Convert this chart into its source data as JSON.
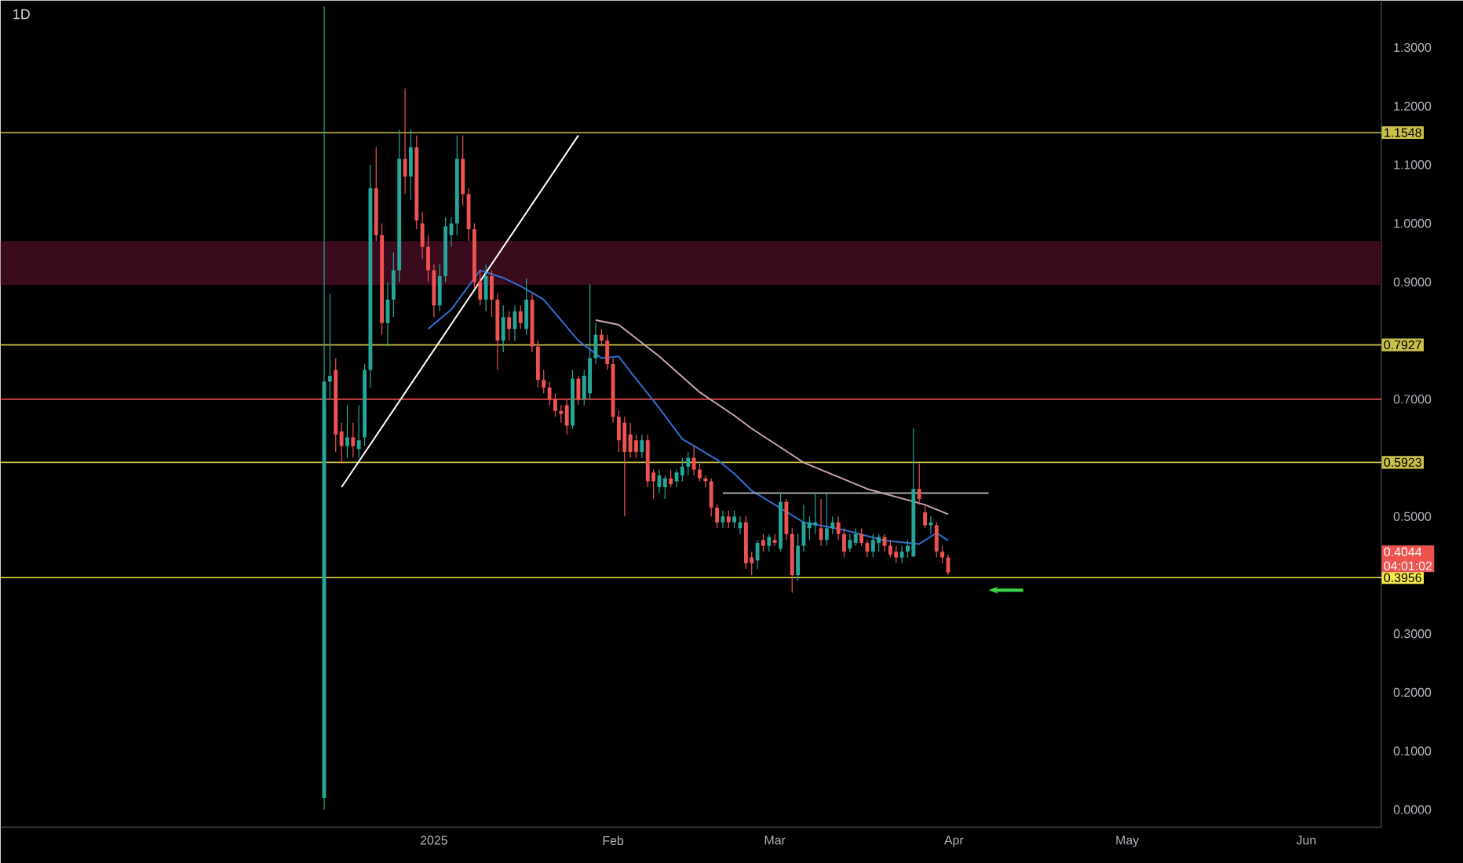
{
  "chart_data": {
    "type": "candlestick",
    "title": "1D",
    "x": [
      "2024-12-13",
      "2024-12-14",
      "2024-12-15",
      "2024-12-16",
      "2024-12-17",
      "2024-12-18",
      "2024-12-19",
      "2024-12-20",
      "2024-12-21",
      "2024-12-22",
      "2024-12-23",
      "2024-12-24",
      "2024-12-25",
      "2024-12-26",
      "2024-12-27",
      "2024-12-28",
      "2024-12-29",
      "2024-12-30",
      "2024-12-31",
      "2025-01-01",
      "2025-01-02",
      "2025-01-03",
      "2025-01-04",
      "2025-01-05",
      "2025-01-06",
      "2025-01-07",
      "2025-01-08",
      "2025-01-09",
      "2025-01-10",
      "2025-01-11",
      "2025-01-12",
      "2025-01-13",
      "2025-01-14",
      "2025-01-15",
      "2025-01-16",
      "2025-01-17",
      "2025-01-18",
      "2025-01-19",
      "2025-01-20",
      "2025-01-21",
      "2025-01-22",
      "2025-01-23",
      "2025-01-24",
      "2025-01-25",
      "2025-01-26",
      "2025-01-27",
      "2025-01-28",
      "2025-01-29",
      "2025-01-30",
      "2025-01-31",
      "2025-02-01",
      "2025-02-02",
      "2025-02-03",
      "2025-02-04",
      "2025-02-05",
      "2025-02-06",
      "2025-02-07",
      "2025-02-08",
      "2025-02-09",
      "2025-02-10",
      "2025-02-11",
      "2025-02-12",
      "2025-02-13",
      "2025-02-14",
      "2025-02-15",
      "2025-02-16",
      "2025-02-17",
      "2025-02-18",
      "2025-02-19",
      "2025-02-20",
      "2025-02-21",
      "2025-02-22",
      "2025-02-23",
      "2025-02-24",
      "2025-02-25",
      "2025-02-26",
      "2025-02-27",
      "2025-02-28",
      "2025-03-01",
      "2025-03-02",
      "2025-03-03",
      "2025-03-04",
      "2025-03-05",
      "2025-03-06",
      "2025-03-07",
      "2025-03-08",
      "2025-03-09",
      "2025-03-10",
      "2025-03-11",
      "2025-03-12",
      "2025-03-13",
      "2025-03-14",
      "2025-03-15",
      "2025-03-16",
      "2025-03-17",
      "2025-03-18",
      "2025-03-19",
      "2025-03-20",
      "2025-03-21",
      "2025-03-22",
      "2025-03-23",
      "2025-03-24",
      "2025-03-25",
      "2025-03-26",
      "2025-03-27",
      "2025-03-28",
      "2025-03-29",
      "2025-03-30",
      "2025-03-31"
    ],
    "ohlc": [
      [
        0.02,
        1.37,
        0.0,
        0.73
      ],
      [
        0.73,
        0.88,
        0.7,
        0.74
      ],
      [
        0.75,
        0.77,
        0.61,
        0.64
      ],
      [
        0.645,
        0.66,
        0.59,
        0.62
      ],
      [
        0.62,
        0.69,
        0.6,
        0.635
      ],
      [
        0.635,
        0.66,
        0.6,
        0.62
      ],
      [
        0.615,
        0.69,
        0.6,
        0.63
      ],
      [
        0.635,
        0.76,
        0.62,
        0.75
      ],
      [
        0.75,
        1.1,
        0.72,
        1.06
      ],
      [
        1.06,
        1.13,
        0.97,
        0.98
      ],
      [
        0.98,
        1.0,
        0.81,
        0.83
      ],
      [
        0.83,
        0.9,
        0.79,
        0.87
      ],
      [
        0.87,
        0.95,
        0.84,
        0.92
      ],
      [
        0.92,
        1.16,
        0.9,
        1.11
      ],
      [
        1.11,
        1.23,
        1.05,
        1.08
      ],
      [
        1.08,
        1.16,
        1.04,
        1.13
      ],
      [
        1.13,
        1.15,
        0.99,
        1.005
      ],
      [
        1.0,
        1.02,
        0.94,
        0.96
      ],
      [
        0.96,
        0.98,
        0.9,
        0.92
      ],
      [
        0.92,
        0.93,
        0.84,
        0.86
      ],
      [
        0.86,
        0.93,
        0.85,
        0.91
      ],
      [
        0.91,
        1.01,
        0.9,
        0.995
      ],
      [
        0.98,
        1.01,
        0.96,
        1.0
      ],
      [
        1.0,
        1.15,
        0.98,
        1.11
      ],
      [
        1.11,
        1.15,
        1.03,
        1.05
      ],
      [
        1.05,
        1.06,
        0.97,
        0.99
      ],
      [
        0.99,
        1.0,
        0.89,
        0.9
      ],
      [
        0.9,
        0.92,
        0.86,
        0.87
      ],
      [
        0.87,
        0.93,
        0.85,
        0.91
      ],
      [
        0.91,
        0.92,
        0.84,
        0.87
      ],
      [
        0.87,
        0.88,
        0.75,
        0.8
      ],
      [
        0.8,
        0.86,
        0.78,
        0.84
      ],
      [
        0.84,
        0.85,
        0.8,
        0.82
      ],
      [
        0.82,
        0.86,
        0.8,
        0.85
      ],
      [
        0.85,
        0.86,
        0.82,
        0.83
      ],
      [
        0.82,
        0.906,
        0.81,
        0.87
      ],
      [
        0.87,
        0.88,
        0.78,
        0.79
      ],
      [
        0.79,
        0.8,
        0.72,
        0.733
      ],
      [
        0.733,
        0.75,
        0.71,
        0.72
      ],
      [
        0.72,
        0.73,
        0.69,
        0.7
      ],
      [
        0.7,
        0.71,
        0.67,
        0.68
      ],
      [
        0.68,
        0.69,
        0.66,
        0.675
      ],
      [
        0.69,
        0.7,
        0.64,
        0.655
      ],
      [
        0.655,
        0.75,
        0.65,
        0.735
      ],
      [
        0.735,
        0.74,
        0.69,
        0.7
      ],
      [
        0.7,
        0.75,
        0.69,
        0.74
      ],
      [
        0.71,
        0.896,
        0.7,
        0.77
      ],
      [
        0.77,
        0.83,
        0.76,
        0.81
      ],
      [
        0.81,
        0.82,
        0.79,
        0.8
      ],
      [
        0.8,
        0.81,
        0.75,
        0.76
      ],
      [
        0.76,
        0.77,
        0.66,
        0.67
      ],
      [
        0.67,
        0.68,
        0.61,
        0.63
      ],
      [
        0.66,
        0.67,
        0.5,
        0.61
      ],
      [
        0.64,
        0.66,
        0.6,
        0.61
      ],
      [
        0.63,
        0.64,
        0.6,
        0.61
      ],
      [
        0.61,
        0.64,
        0.6,
        0.63
      ],
      [
        0.63,
        0.64,
        0.55,
        0.56
      ],
      [
        0.575,
        0.58,
        0.53,
        0.56
      ],
      [
        0.55,
        0.58,
        0.54,
        0.57
      ],
      [
        0.55,
        0.57,
        0.53,
        0.565
      ],
      [
        0.565,
        0.58,
        0.55,
        0.555
      ],
      [
        0.56,
        0.58,
        0.55,
        0.575
      ],
      [
        0.57,
        0.6,
        0.56,
        0.585
      ],
      [
        0.585,
        0.61,
        0.57,
        0.6
      ],
      [
        0.6,
        0.62,
        0.57,
        0.58
      ],
      [
        0.58,
        0.59,
        0.56,
        0.565
      ],
      [
        0.565,
        0.57,
        0.55,
        0.56
      ],
      [
        0.56,
        0.565,
        0.5,
        0.515
      ],
      [
        0.515,
        0.52,
        0.48,
        0.49
      ],
      [
        0.49,
        0.51,
        0.48,
        0.5
      ],
      [
        0.5,
        0.51,
        0.48,
        0.49
      ],
      [
        0.49,
        0.51,
        0.48,
        0.5
      ],
      [
        0.48,
        0.5,
        0.47,
        0.49
      ],
      [
        0.49,
        0.5,
        0.41,
        0.42
      ],
      [
        0.43,
        0.44,
        0.4,
        0.42
      ],
      [
        0.425,
        0.46,
        0.41,
        0.455
      ],
      [
        0.46,
        0.47,
        0.44,
        0.45
      ],
      [
        0.45,
        0.47,
        0.44,
        0.465
      ],
      [
        0.46,
        0.47,
        0.45,
        0.455
      ],
      [
        0.445,
        0.54,
        0.44,
        0.525
      ],
      [
        0.525,
        0.53,
        0.46,
        0.47
      ],
      [
        0.47,
        0.48,
        0.37,
        0.4
      ],
      [
        0.4,
        0.47,
        0.39,
        0.45
      ],
      [
        0.45,
        0.52,
        0.44,
        0.49
      ],
      [
        0.48,
        0.5,
        0.46,
        0.49
      ],
      [
        0.485,
        0.54,
        0.47,
        0.49
      ],
      [
        0.48,
        0.53,
        0.45,
        0.46
      ],
      [
        0.46,
        0.54,
        0.45,
        0.48
      ],
      [
        0.48,
        0.5,
        0.47,
        0.49
      ],
      [
        0.49,
        0.5,
        0.46,
        0.47
      ],
      [
        0.47,
        0.48,
        0.43,
        0.44
      ],
      [
        0.445,
        0.47,
        0.44,
        0.46
      ],
      [
        0.455,
        0.48,
        0.45,
        0.47
      ],
      [
        0.47,
        0.48,
        0.45,
        0.455
      ],
      [
        0.455,
        0.46,
        0.43,
        0.44
      ],
      [
        0.44,
        0.47,
        0.43,
        0.46
      ],
      [
        0.455,
        0.47,
        0.44,
        0.465
      ],
      [
        0.465,
        0.47,
        0.44,
        0.45
      ],
      [
        0.45,
        0.46,
        0.43,
        0.435
      ],
      [
        0.44,
        0.45,
        0.42,
        0.43
      ],
      [
        0.43,
        0.45,
        0.42,
        0.44
      ],
      [
        0.44,
        0.46,
        0.43,
        0.45
      ],
      [
        0.432,
        0.65,
        0.43,
        0.547
      ],
      [
        0.547,
        0.59,
        0.52,
        0.53
      ],
      [
        0.507,
        0.52,
        0.48,
        0.485
      ],
      [
        0.485,
        0.5,
        0.47,
        0.49
      ],
      [
        0.485,
        0.49,
        0.43,
        0.44
      ],
      [
        0.44,
        0.45,
        0.42,
        0.43
      ],
      [
        0.43,
        0.435,
        0.4,
        0.4044
      ]
    ],
    "series": [
      {
        "type": "line",
        "color": "#2f6fd0",
        "x": [
          "2024-12-31",
          "2025-01-04",
          "2025-01-09",
          "2025-01-13",
          "2025-01-16",
          "2025-01-20",
          "2025-01-26",
          "2025-01-30",
          "2025-02-02",
          "2025-02-04",
          "2025-02-09",
          "2025-02-13",
          "2025-02-19",
          "2025-02-22",
          "2025-02-25",
          "2025-03-06",
          "2025-03-13",
          "2025-03-20",
          "2025-03-26",
          "2025-03-29",
          "2025-03-31"
        ],
        "values": [
          0.82,
          0.853,
          0.92,
          0.907,
          0.893,
          0.87,
          0.8,
          0.77,
          0.773,
          0.747,
          0.685,
          0.632,
          0.597,
          0.573,
          0.544,
          0.49,
          0.477,
          0.459,
          0.453,
          0.472,
          0.459
        ]
      },
      {
        "type": "line",
        "color": "#c9a4b4",
        "x": [
          "2025-01-29",
          "2025-02-02",
          "2025-02-09",
          "2025-02-16",
          "2025-02-22",
          "2025-02-25",
          "2025-03-06",
          "2025-03-17",
          "2025-03-27",
          "2025-03-31"
        ],
        "values": [
          0.835,
          0.827,
          0.773,
          0.712,
          0.672,
          0.65,
          0.592,
          0.547,
          0.52,
          0.504
        ]
      },
      {
        "type": "line",
        "color": "#ffffff",
        "x": [
          "2024-12-16",
          "2025-01-26"
        ],
        "values": [
          0.55,
          1.15
        ]
      },
      {
        "type": "line",
        "color": "#a8a8a8",
        "x": [
          "2025-02-20",
          "2025-04-07"
        ],
        "values": [
          0.54,
          0.54
        ]
      }
    ],
    "xlim": [
      "2024-10-18",
      "2025-06-14"
    ],
    "xticks": [
      {
        "value": "2025-01-01",
        "label": "2025"
      },
      {
        "value": "2025-02-01",
        "label": "Feb"
      },
      {
        "value": "2025-03-01",
        "label": "Mar"
      },
      {
        "value": "2025-04-01",
        "label": "Apr"
      },
      {
        "value": "2025-05-01",
        "label": "May"
      },
      {
        "value": "2025-06-01",
        "label": "Jun"
      }
    ],
    "ylim": [
      -0.03,
      1.38
    ],
    "yticks": [
      {
        "value": 0,
        "label": "0.0000"
      },
      {
        "value": 0.1,
        "label": "0.1000"
      },
      {
        "value": 0.2,
        "label": "0.2000"
      },
      {
        "value": 0.3,
        "label": "0.3000"
      },
      {
        "value": 0.5,
        "label": "0.5000"
      },
      {
        "value": 0.7,
        "label": "0.7000"
      },
      {
        "value": 0.9,
        "label": "0.9000"
      },
      {
        "value": 1.0,
        "label": "1.0000"
      },
      {
        "value": 1.1,
        "label": "1.1000"
      },
      {
        "value": 1.2,
        "label": "1.2000"
      },
      {
        "value": 1.3,
        "label": "1.3000"
      }
    ],
    "bands": [
      {
        "axis": "y",
        "from": 0.895,
        "to": 0.97,
        "color": "#3a0b1c"
      }
    ],
    "ref_lines": [
      {
        "axis": "y",
        "value": 1.1548,
        "label": "1.1548",
        "color": "#c9c04a"
      },
      {
        "axis": "y",
        "value": 0.7927,
        "label": "0.7927",
        "color": "#c9c04a"
      },
      {
        "axis": "y",
        "value": 0.7,
        "color": "#e04a4a"
      },
      {
        "axis": "y",
        "value": 0.5923,
        "label": "0.5923",
        "color": "#c9c04a"
      },
      {
        "axis": "y",
        "value": 0.3956,
        "label": "0.3956",
        "color": "#f5e94a"
      }
    ],
    "annotations": [
      "0.4044",
      "04:01:02"
    ]
  }
}
